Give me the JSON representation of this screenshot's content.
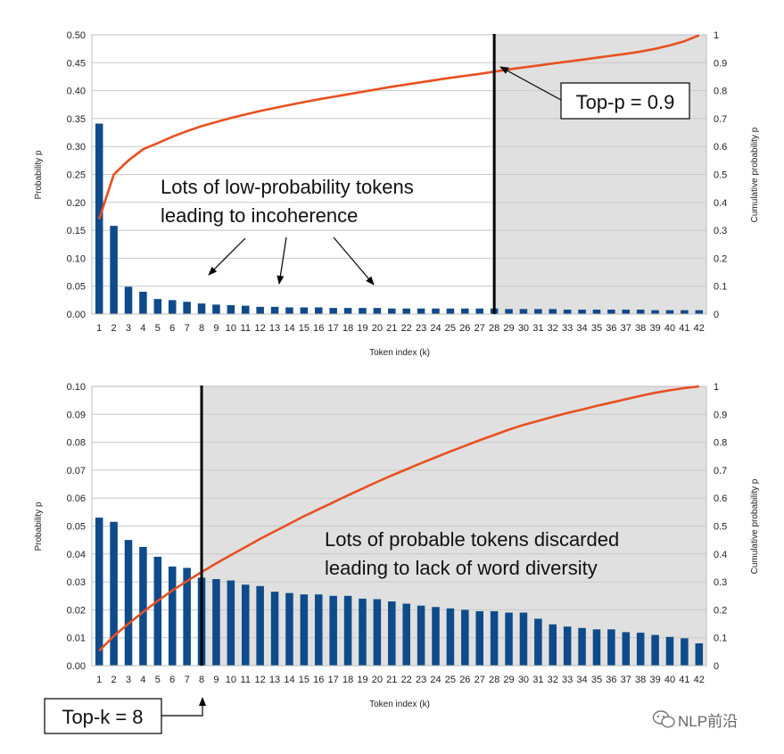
{
  "watermark": "NLP前沿",
  "colors": {
    "bar": "#0f4b8a",
    "line": "#e8501f",
    "shade": "#e0e0e0",
    "grid": "#c8c8c8",
    "cut": "#000000"
  },
  "chart_data": [
    {
      "type": "bar",
      "title": "",
      "xlabel": "Token index (k)",
      "ylabel": "Probability p",
      "y2label": "Cumulative probability p",
      "ylim": [
        0,
        0.5
      ],
      "y2lim": [
        0,
        1
      ],
      "yticks": [
        "0.00",
        "0.05",
        "0.10",
        "0.15",
        "0.20",
        "0.25",
        "0.30",
        "0.35",
        "0.40",
        "0.45",
        "0.50"
      ],
      "y2ticks": [
        "0",
        "0.1",
        "0.2",
        "0.3",
        "0.4",
        "0.5",
        "0.6",
        "0.7",
        "0.8",
        "0.9",
        "1"
      ],
      "categories": [
        "1",
        "2",
        "3",
        "4",
        "5",
        "6",
        "7",
        "8",
        "9",
        "10",
        "11",
        "12",
        "13",
        "14",
        "15",
        "16",
        "17",
        "18",
        "19",
        "20",
        "21",
        "22",
        "23",
        "24",
        "25",
        "26",
        "27",
        "28",
        "29",
        "30",
        "31",
        "32",
        "33",
        "34",
        "35",
        "36",
        "37",
        "38",
        "39",
        "40",
        "41",
        "42"
      ],
      "series": [
        {
          "name": "Probability p",
          "axis": "left",
          "kind": "bar",
          "values": [
            0.341,
            0.158,
            0.049,
            0.04,
            0.027,
            0.025,
            0.022,
            0.019,
            0.017,
            0.016,
            0.015,
            0.013,
            0.013,
            0.012,
            0.012,
            0.012,
            0.011,
            0.011,
            0.011,
            0.011,
            0.01,
            0.01,
            0.01,
            0.01,
            0.01,
            0.01,
            0.01,
            0.01,
            0.009,
            0.009,
            0.009,
            0.009,
            0.008,
            0.008,
            0.008,
            0.008,
            0.008,
            0.008,
            0.007,
            0.007,
            0.007,
            0.007
          ]
        },
        {
          "name": "Cumulative probability p",
          "axis": "right",
          "kind": "line",
          "values": [
            0.34,
            0.5,
            0.55,
            0.59,
            0.612,
            0.635,
            0.655,
            0.673,
            0.688,
            0.702,
            0.715,
            0.727,
            0.738,
            0.749,
            0.759,
            0.769,
            0.778,
            0.787,
            0.796,
            0.805,
            0.814,
            0.822,
            0.83,
            0.838,
            0.846,
            0.853,
            0.86,
            0.868,
            0.876,
            0.883,
            0.89,
            0.897,
            0.904,
            0.911,
            0.918,
            0.925,
            0.932,
            0.94,
            0.95,
            0.962,
            0.977,
            0.998
          ]
        }
      ],
      "cutoff_index": 28,
      "shade_after_cutoff": true,
      "annotations": {
        "box_label": "Top-p = 0.9",
        "note_line1": "Lots of low-probability tokens",
        "note_line2": "leading to incoherence"
      }
    },
    {
      "type": "bar",
      "title": "",
      "xlabel": "Token index (k)",
      "ylabel": "Probability p",
      "y2label": "Cumulative probability p",
      "ylim": [
        0,
        0.1
      ],
      "y2lim": [
        0,
        1
      ],
      "yticks": [
        "0.00",
        "0.01",
        "0.02",
        "0.03",
        "0.04",
        "0.05",
        "0.06",
        "0.07",
        "0.08",
        "0.09",
        "0.10"
      ],
      "y2ticks": [
        "0",
        "0.1",
        "0.2",
        "0.3",
        "0.4",
        "0.5",
        "0.6",
        "0.7",
        "0.8",
        "0.9",
        "1"
      ],
      "categories": [
        "1",
        "2",
        "3",
        "4",
        "5",
        "6",
        "7",
        "8",
        "9",
        "10",
        "11",
        "12",
        "13",
        "14",
        "15",
        "16",
        "17",
        "18",
        "19",
        "20",
        "21",
        "22",
        "23",
        "24",
        "25",
        "26",
        "27",
        "28",
        "29",
        "30",
        "31",
        "32",
        "33",
        "34",
        "35",
        "36",
        "37",
        "38",
        "39",
        "40",
        "41",
        "42"
      ],
      "series": [
        {
          "name": "Probability p",
          "axis": "left",
          "kind": "bar",
          "values": [
            0.053,
            0.0515,
            0.045,
            0.0425,
            0.039,
            0.0355,
            0.035,
            0.0315,
            0.031,
            0.0305,
            0.029,
            0.0285,
            0.0265,
            0.026,
            0.0255,
            0.0255,
            0.025,
            0.025,
            0.024,
            0.0238,
            0.023,
            0.0222,
            0.0215,
            0.021,
            0.0205,
            0.02,
            0.0195,
            0.0195,
            0.019,
            0.019,
            0.0168,
            0.0148,
            0.014,
            0.0135,
            0.013,
            0.013,
            0.012,
            0.0118,
            0.011,
            0.0103,
            0.0098,
            0.008
          ]
        },
        {
          "name": "Cumulative probability p",
          "axis": "right",
          "kind": "line",
          "values": [
            0.053,
            0.106,
            0.15,
            0.192,
            0.232,
            0.269,
            0.303,
            0.335,
            0.366,
            0.396,
            0.425,
            0.454,
            0.481,
            0.508,
            0.535,
            0.56,
            0.585,
            0.61,
            0.634,
            0.658,
            0.681,
            0.703,
            0.725,
            0.746,
            0.767,
            0.787,
            0.807,
            0.826,
            0.845,
            0.862,
            0.876,
            0.891,
            0.905,
            0.917,
            0.93,
            0.942,
            0.954,
            0.966,
            0.977,
            0.986,
            0.994,
            1.0
          ]
        }
      ],
      "cutoff_index": 8,
      "shade_after_cutoff": true,
      "annotations": {
        "box_label": "Top-k = 8",
        "note_line1": "Lots of probable tokens discarded",
        "note_line2": "leading to lack of word diversity"
      }
    }
  ]
}
